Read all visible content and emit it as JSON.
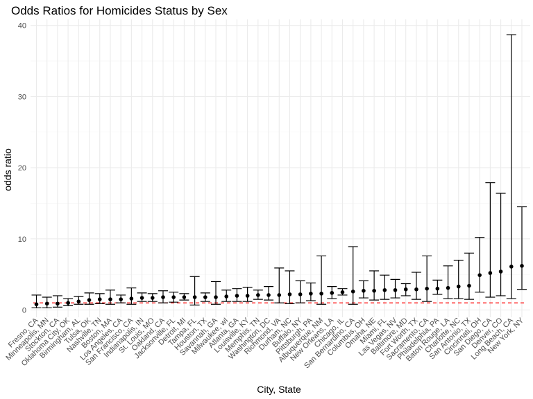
{
  "chart_data": {
    "type": "errorbar",
    "title": "Odds Ratios for Homicides Status by Sex",
    "xlabel": "City, State",
    "ylabel": "odds ratio",
    "ylim": [
      -1,
      41
    ],
    "yticks": [
      0,
      10,
      20,
      30,
      40
    ],
    "grid": true,
    "reference_line": {
      "y": 1,
      "color": "#ff0000",
      "style": "dashed"
    },
    "categories": [
      "Fresno, CA",
      "Minneapolis, MN",
      "Stockton, CA",
      "Oklahoma City, OK",
      "Birmingham, AL",
      "Tulsa, OK",
      "Nashville, TN",
      "Boston, MA",
      "Los Angeles, CA",
      "San Francisco, CA",
      "Indianapolis, IN",
      "St. Louis, MO",
      "Oakland, CA",
      "Jacksonville, FL",
      "Detroit, MI",
      "Tampa, FL",
      "Houston, TX",
      "Savannah, GA",
      "Milwaukee, wI",
      "Atlanta, GA",
      "Louisville, KY",
      "Memphis, TN",
      "Washington, DC",
      "Richmond, VA",
      "Durham, NC",
      "Buffalo, NY",
      "Pittsburgh, PA",
      "Albuquerque, NM",
      "New Orleans, LA",
      "Chicago, IL",
      "San Bernardino, CA",
      "Columbus, OH",
      "Omaha, NE",
      "Miami, FL",
      "Las Vegas, NV",
      "Baltimore, MD",
      "Fort Worth, TX",
      "Sacramento, CA",
      "Philadelphia, PA",
      "Baton Rouge, LA",
      "Charlotte, NC",
      "San Antonio, TX",
      "Cincinnati, OH",
      "San Diego, CA",
      "Denver, CO",
      "Long Beach, CA",
      "New York, NY"
    ],
    "estimate": [
      0.8,
      0.9,
      0.9,
      1.0,
      1.2,
      1.4,
      1.5,
      1.5,
      1.5,
      1.6,
      1.7,
      1.7,
      1.8,
      1.8,
      1.8,
      1.8,
      1.8,
      1.8,
      1.9,
      2.0,
      2.0,
      2.1,
      2.1,
      2.1,
      2.2,
      2.2,
      2.3,
      2.3,
      2.4,
      2.5,
      2.6,
      2.7,
      2.7,
      2.8,
      2.8,
      2.9,
      2.9,
      3.0,
      3.0,
      3.1,
      3.3,
      3.4,
      4.9,
      5.2,
      5.4,
      6.1,
      6.2
    ],
    "ci_low": [
      0.3,
      0.3,
      0.4,
      0.6,
      0.8,
      0.8,
      0.9,
      0.8,
      1.0,
      0.8,
      1.2,
      1.2,
      1.0,
      1.1,
      1.4,
      0.7,
      1.2,
      0.8,
      1.2,
      1.2,
      1.2,
      1.5,
      1.4,
      1.0,
      0.9,
      1.0,
      1.3,
      0.8,
      1.6,
      2.1,
      0.8,
      1.7,
      1.4,
      1.5,
      1.7,
      2.0,
      1.5,
      1.2,
      2.2,
      1.6,
      1.6,
      1.5,
      2.5,
      1.8,
      2.0,
      1.6,
      2.9
    ],
    "ci_high": [
      2.1,
      1.8,
      2.0,
      1.6,
      1.9,
      2.4,
      2.3,
      2.8,
      2.1,
      3.1,
      2.4,
      2.3,
      2.7,
      2.5,
      2.3,
      4.7,
      2.4,
      4.0,
      2.8,
      3.0,
      3.2,
      2.8,
      3.3,
      5.9,
      5.5,
      4.1,
      3.8,
      7.6,
      3.3,
      3.0,
      8.9,
      4.1,
      5.5,
      4.9,
      4.3,
      3.7,
      5.3,
      7.6,
      4.2,
      6.2,
      7.0,
      8.0,
      10.2,
      17.9,
      16.4,
      38.7,
      14.5
    ]
  }
}
